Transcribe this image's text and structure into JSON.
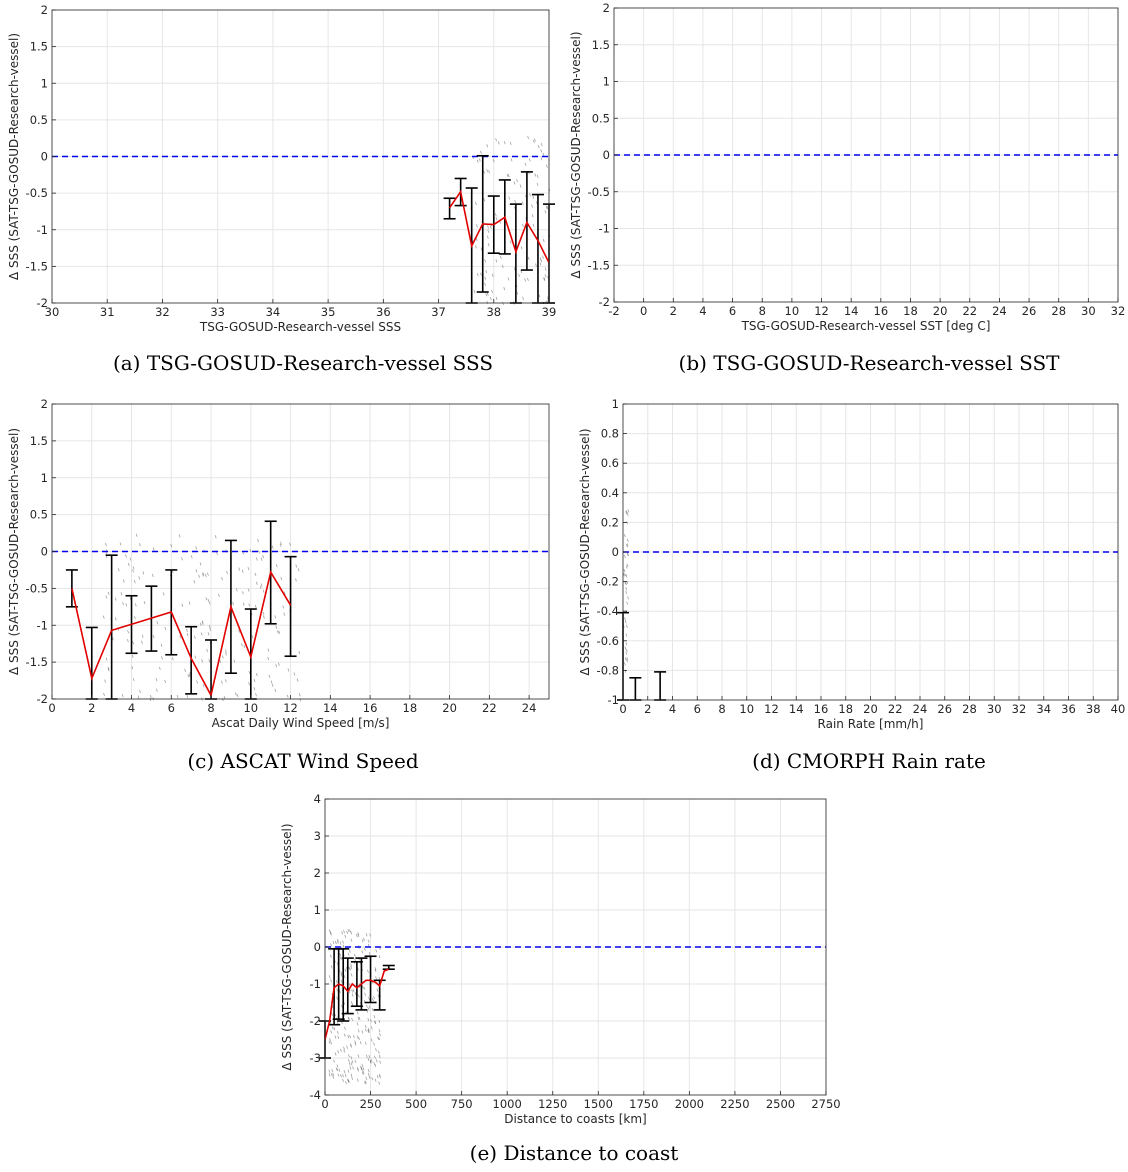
{
  "captions": [
    "(a) TSG-GOSUD-Research-vessel SSS",
    "(b) TSG-GOSUD-Research-vessel SST",
    "(c) ASCAT Wind Speed",
    "(d) CMORPH Rain rate",
    "(e) Distance to coast"
  ],
  "colors": {
    "mean_line": "#e00000",
    "zero_line": "#0000ee",
    "errorbar": "#000000",
    "scatter": "#555555",
    "grid": "#e6e6e6"
  },
  "chart_data": [
    {
      "type": "line",
      "xlabel": "TSG-GOSUD-Research-vessel SSS",
      "ylabel": "Δ SSS (SAT-TSG-GOSUD-Research-vessel)",
      "xlim": [
        30,
        39
      ],
      "ylim": [
        -2,
        2
      ],
      "xticks": [
        30,
        31,
        32,
        33,
        34,
        35,
        36,
        37,
        38,
        39
      ],
      "yticks": [
        -2,
        -1.5,
        -1,
        -0.5,
        0,
        0.5,
        1,
        1.5,
        2
      ],
      "grid": true,
      "reference_line": 0,
      "series": [
        {
          "x": [
            37.2,
            37.4,
            37.6,
            37.8,
            38.0,
            38.2,
            38.4,
            38.6,
            38.8,
            39.0
          ],
          "y": [
            -0.7,
            -0.48,
            -1.22,
            -0.92,
            -0.93,
            -0.83,
            -1.3,
            -0.9,
            -1.15,
            -1.45
          ]
        }
      ],
      "errorbars": [
        {
          "x": 37.2,
          "low": -0.85,
          "high": -0.57
        },
        {
          "x": 37.4,
          "low": -0.67,
          "high": -0.3
        },
        {
          "x": 37.6,
          "low": -2.0,
          "high": -0.43
        },
        {
          "x": 37.8,
          "low": -1.85,
          "high": 0.01
        },
        {
          "x": 38.0,
          "low": -1.32,
          "high": -0.54
        },
        {
          "x": 38.2,
          "low": -1.33,
          "high": -0.32
        },
        {
          "x": 38.4,
          "low": -2.0,
          "high": -0.65
        },
        {
          "x": 38.6,
          "low": -1.55,
          "high": -0.21
        },
        {
          "x": 38.8,
          "low": -2.0,
          "high": -0.52
        },
        {
          "x": 39.0,
          "low": -2.0,
          "high": -0.65
        }
      ],
      "scatter": {
        "xrange": [
          37.6,
          39.0
        ],
        "yrange": [
          -2.0,
          0.3
        ],
        "count": 120
      }
    },
    {
      "type": "line",
      "xlabel": "TSG-GOSUD-Research-vessel SST [deg C]",
      "ylabel": "Δ SSS (SAT-TSG-GOSUD-Research-vessel)",
      "xlim": [
        -2,
        32
      ],
      "ylim": [
        -2,
        2
      ],
      "xticks": [
        -2,
        0,
        2,
        4,
        6,
        8,
        10,
        12,
        14,
        16,
        18,
        20,
        22,
        24,
        26,
        28,
        30,
        32
      ],
      "yticks": [
        -2,
        -1.5,
        -1,
        -0.5,
        0,
        0.5,
        1,
        1.5,
        2
      ],
      "grid": true,
      "reference_line": 0,
      "series": [],
      "errorbars": []
    },
    {
      "type": "line",
      "xlabel": "Ascat Daily Wind Speed [m/s]",
      "ylabel": "Δ SSS (SAT-TSG-GOSUD-Research-vessel)",
      "xlim": [
        0,
        25
      ],
      "ylim": [
        -2,
        2
      ],
      "xticks": [
        0,
        2,
        4,
        6,
        8,
        10,
        12,
        14,
        16,
        18,
        20,
        22,
        24
      ],
      "yticks": [
        -2,
        -1.5,
        -1,
        -0.5,
        0,
        0.5,
        1,
        1.5,
        2
      ],
      "grid": true,
      "reference_line": 0,
      "series": [
        {
          "x": [
            1,
            2,
            3,
            6,
            7,
            8,
            9,
            10,
            11,
            12
          ],
          "y": [
            -0.5,
            -1.72,
            -1.07,
            -0.82,
            -1.45,
            -1.95,
            -0.75,
            -1.43,
            -0.28,
            -0.73
          ]
        }
      ],
      "errorbars": [
        {
          "x": 1,
          "low": -0.75,
          "high": -0.25
        },
        {
          "x": 2,
          "low": -2.0,
          "high": -1.03
        },
        {
          "x": 3,
          "low": -2.0,
          "high": -0.05
        },
        {
          "x": 4,
          "low": -1.38,
          "high": -0.6
        },
        {
          "x": 5,
          "low": -1.35,
          "high": -0.47
        },
        {
          "x": 6,
          "low": -1.4,
          "high": -0.25
        },
        {
          "x": 7,
          "low": -1.93,
          "high": -1.02
        },
        {
          "x": 8,
          "low": -2.0,
          "high": -1.2
        },
        {
          "x": 9,
          "low": -1.65,
          "high": 0.15
        },
        {
          "x": 10,
          "low": -2.0,
          "high": -0.78
        },
        {
          "x": 11,
          "low": -0.98,
          "high": 0.41
        },
        {
          "x": 12,
          "low": -1.42,
          "high": -0.07
        }
      ],
      "scatter": {
        "xrange": [
          2.5,
          12.5
        ],
        "yrange": [
          -2.0,
          0.25
        ],
        "count": 200
      }
    },
    {
      "type": "line",
      "xlabel": "Rain Rate [mm/h]",
      "ylabel": "Δ SSS (SAT-TSG-GOSUD-Research-vessel)",
      "xlim": [
        0,
        40
      ],
      "ylim": [
        -1,
        1
      ],
      "xticks": [
        0,
        2,
        4,
        6,
        8,
        10,
        12,
        14,
        16,
        18,
        20,
        22,
        24,
        26,
        28,
        30,
        32,
        34,
        36,
        38,
        40
      ],
      "yticks": [
        -1,
        -0.8,
        -0.6,
        -0.4,
        -0.2,
        0,
        0.2,
        0.4,
        0.6,
        0.8,
        1
      ],
      "grid": true,
      "reference_line": 0,
      "series": [],
      "errorbars": [
        {
          "x": 0,
          "low": -1.0,
          "high": -0.41
        },
        {
          "x": 1,
          "low": -1.0,
          "high": -0.85
        },
        {
          "x": 3,
          "low": -1.0,
          "high": -0.81
        }
      ],
      "scatter": {
        "xrange": [
          0,
          0.4
        ],
        "yrange": [
          -0.8,
          0.3
        ],
        "count": 40
      }
    },
    {
      "type": "line",
      "xlabel": "Distance to coasts [km]",
      "ylabel": "Δ SSS (SAT-TSG-GOSUD-Research-vessel)",
      "xlim": [
        0,
        2750
      ],
      "ylim": [
        -4,
        4
      ],
      "xticks": [
        0,
        250,
        500,
        750,
        1000,
        1250,
        1500,
        1750,
        2000,
        2250,
        2500,
        2750
      ],
      "yticks": [
        -4,
        -3,
        -2,
        -1,
        0,
        1,
        2,
        3,
        4
      ],
      "grid": true,
      "reference_line": 0,
      "series": [
        {
          "x": [
            0,
            25,
            50,
            75,
            100,
            125,
            150,
            175,
            200,
            225,
            250,
            275,
            300,
            325,
            350
          ],
          "y": [
            -2.5,
            -2.0,
            -1.1,
            -1.0,
            -1.05,
            -1.2,
            -1.0,
            -1.1,
            -1.0,
            -0.9,
            -0.9,
            -0.95,
            -1.05,
            -0.65,
            -0.6
          ]
        }
      ],
      "errorbars": [
        {
          "x": 0,
          "low": -3.0,
          "high": -2.0
        },
        {
          "x": 50,
          "low": -2.1,
          "high": -0.05
        },
        {
          "x": 75,
          "low": -1.95,
          "high": -0.05
        },
        {
          "x": 100,
          "low": -2.0,
          "high": -0.05
        },
        {
          "x": 125,
          "low": -1.8,
          "high": -0.3
        },
        {
          "x": 175,
          "low": -1.6,
          "high": -0.4
        },
        {
          "x": 200,
          "low": -1.7,
          "high": -0.3
        },
        {
          "x": 250,
          "low": -1.5,
          "high": -0.25
        },
        {
          "x": 300,
          "low": -1.7,
          "high": -0.9
        },
        {
          "x": 350,
          "low": -0.6,
          "high": -0.5
        }
      ],
      "scatter": {
        "xrange": [
          20,
          300
        ],
        "yrange": [
          -3.7,
          0.5
        ],
        "count": 260
      }
    }
  ]
}
